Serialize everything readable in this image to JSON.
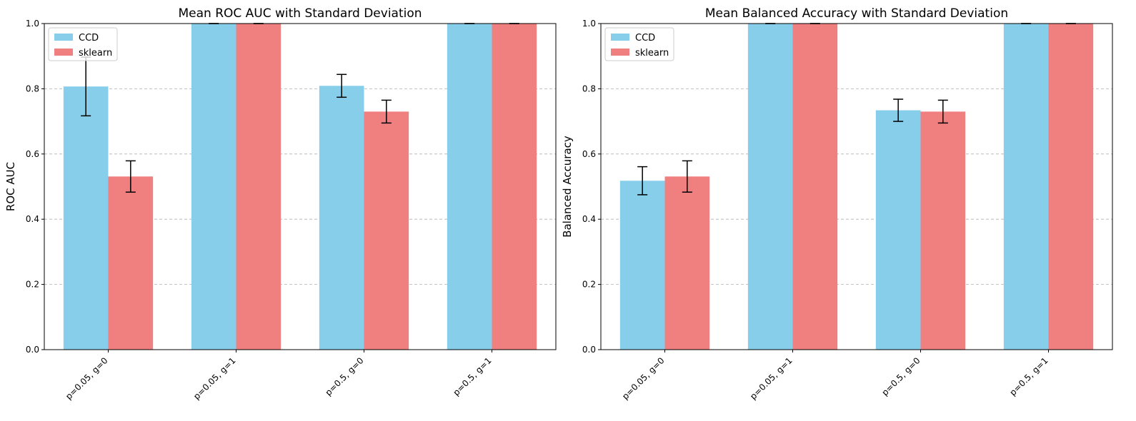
{
  "chart_data": [
    {
      "type": "bar",
      "title": "Mean ROC AUC with Standard Deviation",
      "xlabel": "",
      "ylabel": "ROC AUC",
      "ylim": [
        0,
        1
      ],
      "yticks": [
        "0.0",
        "0.2",
        "0.4",
        "0.6",
        "0.8",
        "1.0"
      ],
      "grid": "y-dashed",
      "legend_position": "top-left",
      "categories": [
        "p=0.05, g=0",
        "p=0.05, g=1",
        "p=0.5, g=0",
        "p=0.5, g=1"
      ],
      "series": [
        {
          "name": "CCD",
          "color": "#87CEEB",
          "values": [
            0.807,
            1.0,
            0.809,
            1.0
          ],
          "errors": [
            0.09,
            0.0,
            0.035,
            0.0
          ]
        },
        {
          "name": "sklearn",
          "color": "#F08080",
          "values": [
            0.531,
            1.0,
            0.73,
            1.0
          ],
          "errors": [
            0.048,
            0.0,
            0.035,
            0.0
          ]
        }
      ]
    },
    {
      "type": "bar",
      "title": "Mean Balanced Accuracy with Standard Deviation",
      "xlabel": "",
      "ylabel": "Balanced Accuracy",
      "ylim": [
        0,
        1
      ],
      "yticks": [
        "0.0",
        "0.2",
        "0.4",
        "0.6",
        "0.8",
        "1.0"
      ],
      "grid": "y-dashed",
      "legend_position": "top-left",
      "categories": [
        "p=0.05, g=0",
        "p=0.05, g=1",
        "p=0.5, g=0",
        "p=0.5, g=1"
      ],
      "series": [
        {
          "name": "CCD",
          "color": "#87CEEB",
          "values": [
            0.518,
            1.0,
            0.734,
            1.0
          ],
          "errors": [
            0.043,
            0.0,
            0.034,
            0.0
          ]
        },
        {
          "name": "sklearn",
          "color": "#F08080",
          "values": [
            0.531,
            1.0,
            0.73,
            1.0
          ],
          "errors": [
            0.048,
            0.0,
            0.035,
            0.0
          ]
        }
      ]
    }
  ]
}
